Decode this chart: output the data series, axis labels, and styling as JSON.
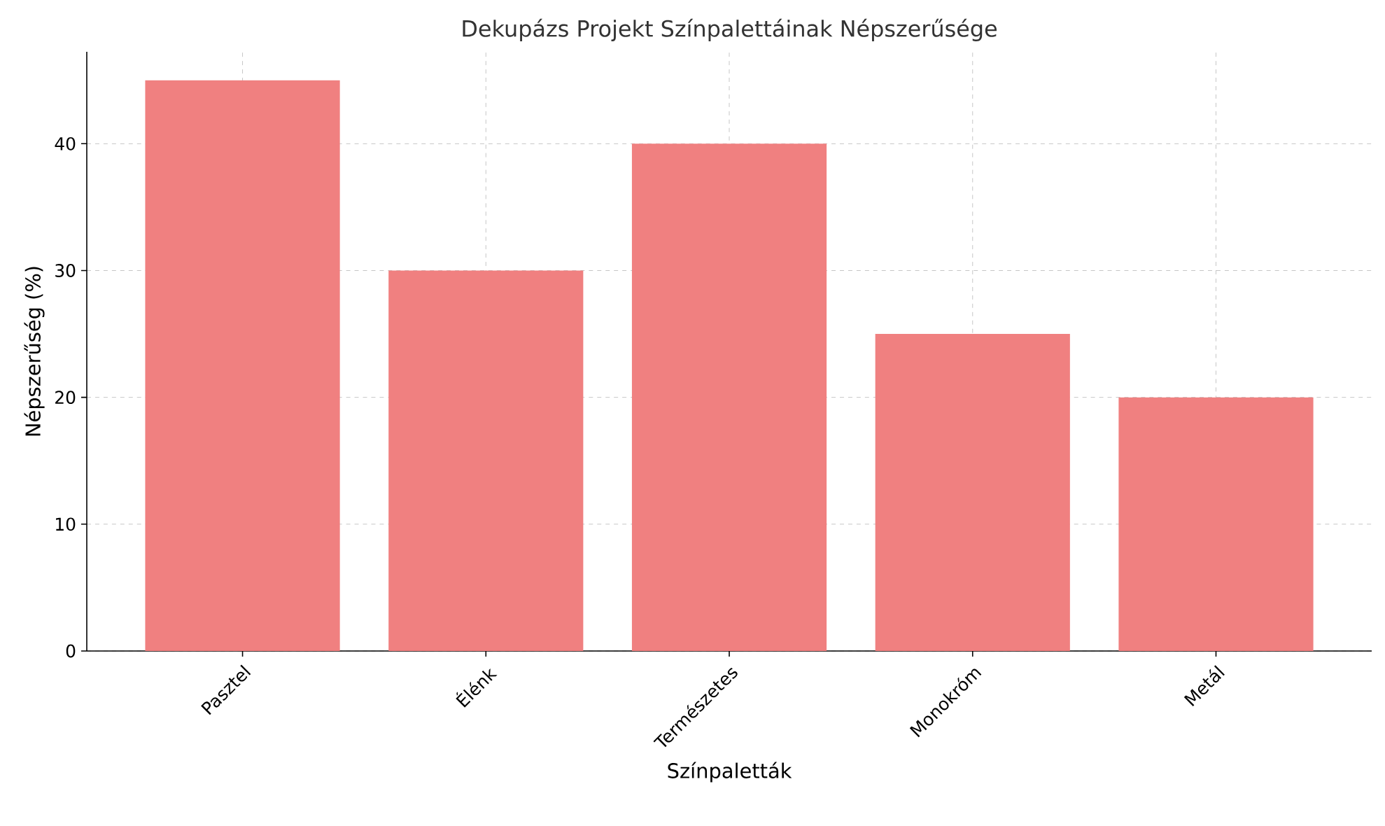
{
  "chart_data": {
    "type": "bar",
    "title": "Dekupázs Projekt Színpalettáinak Népszerűsége",
    "xlabel": "Színpaletták",
    "ylabel": "Népszerűség (%)",
    "categories": [
      "Pasztel",
      "Élénk",
      "Természetes",
      "Monokróm",
      "Metál"
    ],
    "values": [
      45,
      30,
      40,
      25,
      20
    ],
    "color": "#f08080",
    "ylim": [
      0,
      47.25
    ],
    "yticks": [
      0,
      10,
      20,
      30,
      40
    ],
    "grid": true
  }
}
